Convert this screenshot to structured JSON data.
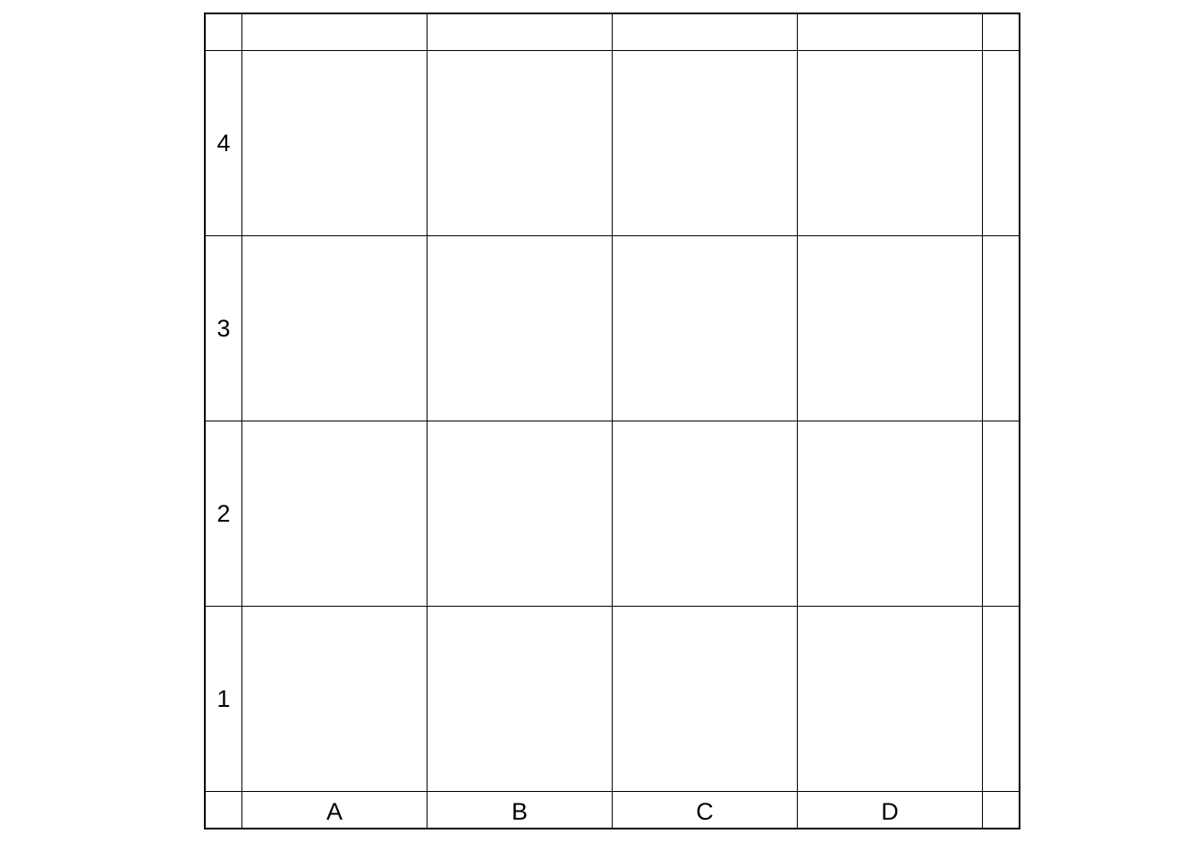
{
  "board": {
    "files": [
      "A",
      "B",
      "C",
      "D"
    ],
    "ranks": [
      "4",
      "3",
      "2",
      "1"
    ]
  }
}
